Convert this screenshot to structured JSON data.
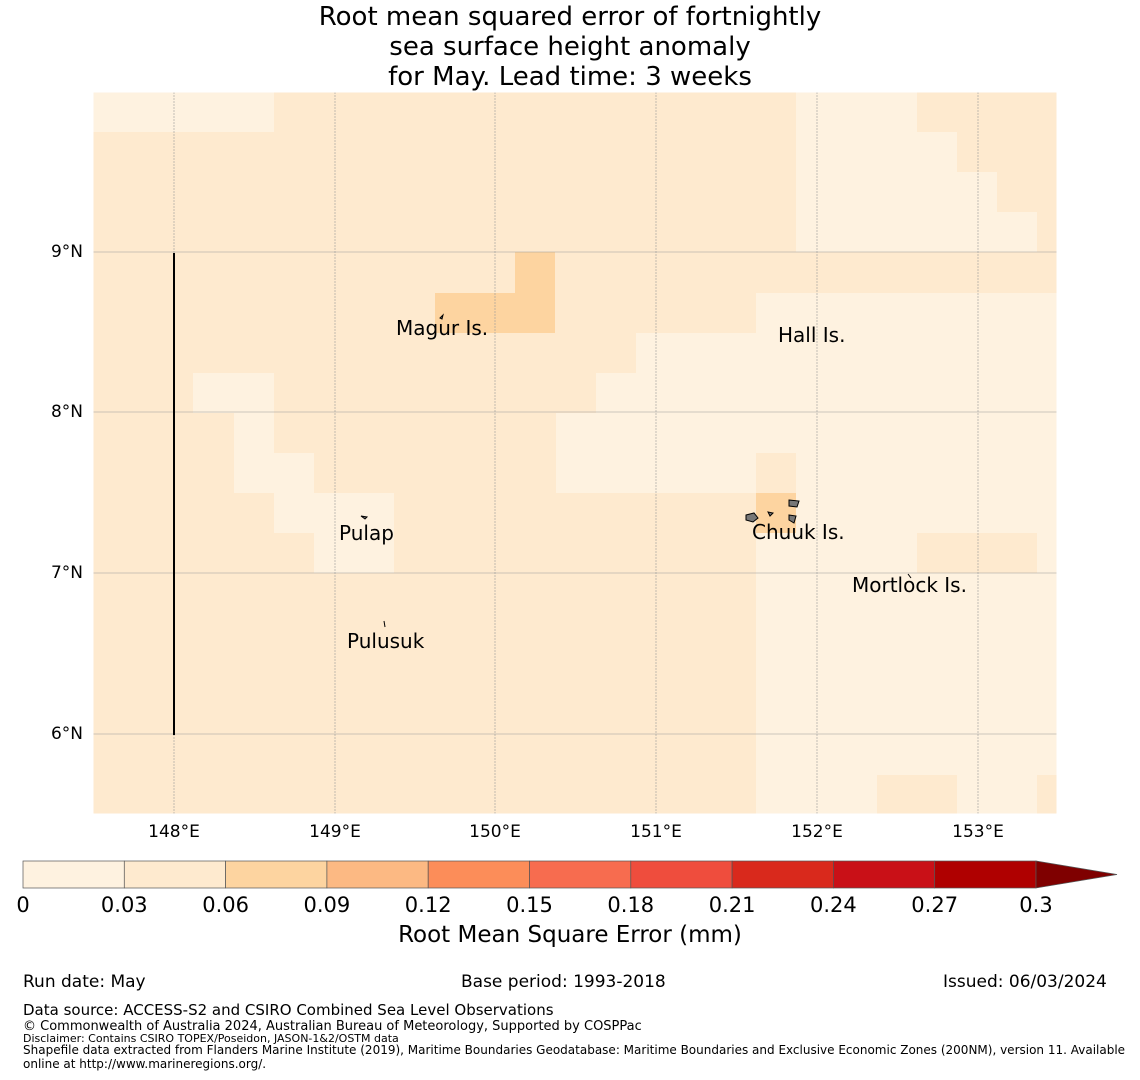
{
  "title_lines": [
    "Root mean squared error of fortnightly",
    "sea surface height anomaly",
    "for May. Lead time: 3 weeks"
  ],
  "map": {
    "lon_range": [
      147.5,
      153.5
    ],
    "lat_range": [
      5.5,
      10.0
    ],
    "x_ticks": [
      "148°E",
      "149°E",
      "150°E",
      "151°E",
      "152°E",
      "153°E"
    ],
    "y_ticks": [
      "9°N",
      "8°N",
      "7°N",
      "6°N"
    ],
    "gridlines": true
  },
  "places": [
    {
      "name": "Magur Is."
    },
    {
      "name": "Hall Is."
    },
    {
      "name": "Pulap"
    },
    {
      "name": "Chuuk Is."
    },
    {
      "name": "Mortlock Is."
    },
    {
      "name": "Pulusuk"
    }
  ],
  "colorbar": {
    "ticks": [
      "0",
      "0.03",
      "0.06",
      "0.09",
      "0.12",
      "0.15",
      "0.18",
      "0.21",
      "0.24",
      "0.27",
      "0.3"
    ],
    "colors": [
      "#fef2e0",
      "#feeacf",
      "#fdd4a0",
      "#fcb983",
      "#fc8d59",
      "#f76c4f",
      "#ef4d3d",
      "#d9291c",
      "#c91017",
      "#af0000"
    ],
    "extend_color": "#7f0000",
    "label": "Root Mean Square Error (mm)"
  },
  "footer": {
    "run_date": "Run date: May",
    "base_period": "Base period: 1993-2018",
    "issued": "Issued: 06/03/2024",
    "data_source": "Data source: ACCESS-S2 and CSIRO Combined Sea Level Observations",
    "copyright": "© Commonwealth of Australia 2024, Australian Bureau of Meteorology, Supported by COSPPac",
    "disclaimer": "Disclaimer: Contains CSIRO TOPEX/Poseidon, JASON-1&2/OSTM data",
    "shapefile_1": "Shapefile data extracted from Flanders Marine Institute (2019), Maritime Boundaries Geodatabase: Maritime Boundaries and Exclusive Economic Zones (200NM), version 11. Available",
    "shapefile_2": "online at http://www.marineregions.org/."
  }
}
